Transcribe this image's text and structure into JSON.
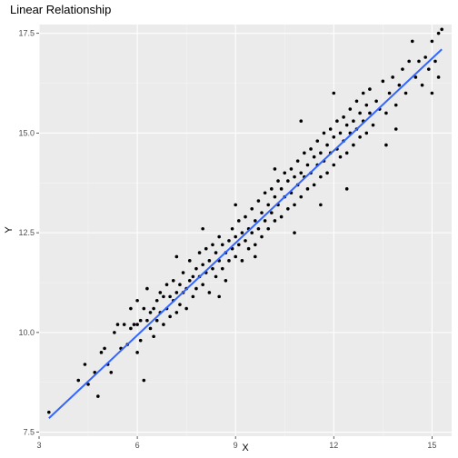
{
  "chart_data": {
    "type": "scatter",
    "title": "Linear Relationship",
    "xlabel": "X",
    "ylabel": "Y",
    "xlim": [
      3.0,
      15.6
    ],
    "ylim": [
      7.4,
      17.72
    ],
    "x_ticks": [
      3,
      6,
      9,
      12,
      15
    ],
    "x_tick_labels": [
      "3",
      "6",
      "9",
      "12",
      "15"
    ],
    "y_ticks": [
      7.5,
      10.0,
      12.5,
      15.0,
      17.5
    ],
    "y_tick_labels": [
      "7.5",
      "10.0",
      "12.5",
      "15.0",
      "17.5"
    ],
    "grid": true,
    "legend": "none",
    "panel_color": "#ebebeb",
    "point_color": "#000000",
    "fit_line": {
      "color": "#3366ff",
      "x": [
        3.3,
        15.3
      ],
      "y": [
        7.85,
        17.1
      ]
    },
    "points": [
      [
        3.3,
        8.0
      ],
      [
        4.2,
        8.8
      ],
      [
        4.4,
        9.2
      ],
      [
        4.5,
        8.7
      ],
      [
        4.7,
        9.0
      ],
      [
        4.8,
        8.4
      ],
      [
        4.9,
        9.5
      ],
      [
        5.0,
        9.6
      ],
      [
        5.1,
        9.2
      ],
      [
        5.2,
        9.0
      ],
      [
        5.3,
        10.0
      ],
      [
        5.4,
        10.2
      ],
      [
        5.5,
        9.6
      ],
      [
        5.6,
        10.2
      ],
      [
        5.7,
        9.7
      ],
      [
        5.8,
        10.1
      ],
      [
        5.8,
        10.6
      ],
      [
        5.9,
        10.2
      ],
      [
        6.0,
        9.5
      ],
      [
        6.0,
        10.8
      ],
      [
        6.1,
        10.3
      ],
      [
        6.1,
        9.8
      ],
      [
        6.2,
        8.8
      ],
      [
        6.2,
        10.6
      ],
      [
        6.3,
        10.3
      ],
      [
        6.3,
        11.1
      ],
      [
        6.4,
        10.1
      ],
      [
        6.4,
        10.5
      ],
      [
        6.5,
        9.9
      ],
      [
        6.5,
        10.6
      ],
      [
        6.6,
        10.8
      ],
      [
        6.6,
        10.3
      ],
      [
        6.7,
        10.5
      ],
      [
        6.7,
        11.0
      ],
      [
        6.8,
        10.2
      ],
      [
        6.8,
        10.9
      ],
      [
        6.9,
        10.6
      ],
      [
        6.9,
        11.2
      ],
      [
        7.0,
        10.4
      ],
      [
        7.0,
        10.9
      ],
      [
        7.1,
        10.8
      ],
      [
        7.1,
        11.3
      ],
      [
        7.2,
        10.5
      ],
      [
        7.2,
        11.0
      ],
      [
        7.3,
        11.2
      ],
      [
        7.3,
        10.7
      ],
      [
        7.4,
        11.0
      ],
      [
        7.4,
        11.5
      ],
      [
        7.5,
        11.1
      ],
      [
        7.5,
        10.6
      ],
      [
        7.6,
        11.3
      ],
      [
        7.6,
        11.8
      ],
      [
        7.7,
        10.9
      ],
      [
        7.7,
        11.4
      ],
      [
        7.8,
        11.6
      ],
      [
        7.8,
        11.1
      ],
      [
        7.9,
        11.4
      ],
      [
        7.9,
        12.0
      ],
      [
        8.0,
        11.2
      ],
      [
        8.0,
        11.7
      ],
      [
        8.1,
        11.5
      ],
      [
        8.1,
        12.1
      ],
      [
        8.2,
        11.0
      ],
      [
        8.2,
        11.8
      ],
      [
        8.3,
        11.6
      ],
      [
        8.3,
        12.2
      ],
      [
        8.4,
        11.4
      ],
      [
        8.4,
        12.0
      ],
      [
        8.5,
        11.8
      ],
      [
        8.5,
        12.4
      ],
      [
        8.6,
        11.6
      ],
      [
        8.6,
        12.2
      ],
      [
        8.7,
        12.0
      ],
      [
        8.7,
        11.3
      ],
      [
        8.8,
        12.3
      ],
      [
        8.8,
        11.8
      ],
      [
        8.9,
        12.1
      ],
      [
        8.9,
        12.6
      ],
      [
        9.0,
        11.9
      ],
      [
        9.0,
        12.4
      ],
      [
        9.1,
        12.2
      ],
      [
        9.1,
        12.8
      ],
      [
        9.2,
        11.8
      ],
      [
        9.2,
        12.5
      ],
      [
        9.3,
        12.3
      ],
      [
        9.3,
        12.9
      ],
      [
        9.4,
        12.1
      ],
      [
        9.4,
        12.6
      ],
      [
        9.5,
        12.5
      ],
      [
        9.5,
        13.1
      ],
      [
        9.6,
        12.2
      ],
      [
        9.6,
        12.8
      ],
      [
        9.7,
        12.6
      ],
      [
        9.7,
        13.3
      ],
      [
        9.8,
        12.4
      ],
      [
        9.8,
        13.0
      ],
      [
        9.9,
        12.8
      ],
      [
        9.9,
        13.5
      ],
      [
        10.0,
        12.6
      ],
      [
        10.0,
        13.2
      ],
      [
        10.1,
        13.0
      ],
      [
        10.1,
        13.6
      ],
      [
        10.2,
        12.8
      ],
      [
        10.2,
        13.4
      ],
      [
        10.3,
        13.2
      ],
      [
        10.3,
        13.8
      ],
      [
        10.4,
        12.9
      ],
      [
        10.4,
        13.6
      ],
      [
        10.5,
        13.4
      ],
      [
        10.5,
        14.0
      ],
      [
        10.6,
        13.1
      ],
      [
        10.6,
        13.8
      ],
      [
        10.7,
        13.5
      ],
      [
        10.7,
        14.1
      ],
      [
        10.8,
        13.2
      ],
      [
        10.8,
        13.9
      ],
      [
        10.9,
        13.7
      ],
      [
        10.9,
        14.3
      ],
      [
        11.0,
        13.4
      ],
      [
        11.0,
        14.0
      ],
      [
        11.1,
        13.9
      ],
      [
        11.1,
        14.5
      ],
      [
        11.2,
        13.6
      ],
      [
        11.2,
        14.2
      ],
      [
        11.3,
        14.0
      ],
      [
        11.3,
        14.6
      ],
      [
        11.4,
        13.7
      ],
      [
        11.4,
        14.4
      ],
      [
        11.5,
        14.2
      ],
      [
        11.5,
        14.8
      ],
      [
        11.6,
        13.9
      ],
      [
        11.6,
        14.5
      ],
      [
        11.7,
        14.3
      ],
      [
        11.7,
        15.0
      ],
      [
        11.8,
        14.0
      ],
      [
        11.8,
        14.7
      ],
      [
        11.9,
        14.5
      ],
      [
        11.9,
        15.1
      ],
      [
        12.0,
        14.2
      ],
      [
        12.0,
        14.9
      ],
      [
        12.1,
        14.6
      ],
      [
        12.1,
        15.3
      ],
      [
        12.2,
        14.4
      ],
      [
        12.2,
        15.0
      ],
      [
        12.3,
        14.8
      ],
      [
        12.3,
        15.4
      ],
      [
        12.4,
        14.5
      ],
      [
        12.4,
        15.2
      ],
      [
        12.5,
        15.0
      ],
      [
        12.5,
        15.6
      ],
      [
        12.6,
        14.7
      ],
      [
        12.6,
        15.3
      ],
      [
        12.7,
        15.1
      ],
      [
        12.7,
        15.8
      ],
      [
        12.8,
        14.9
      ],
      [
        12.8,
        15.5
      ],
      [
        12.9,
        15.3
      ],
      [
        12.9,
        16.0
      ],
      [
        13.0,
        15.0
      ],
      [
        13.0,
        15.7
      ],
      [
        13.1,
        15.5
      ],
      [
        13.1,
        16.1
      ],
      [
        13.2,
        15.2
      ],
      [
        13.3,
        15.8
      ],
      [
        13.4,
        15.6
      ],
      [
        13.5,
        16.3
      ],
      [
        13.6,
        15.5
      ],
      [
        13.7,
        16.0
      ],
      [
        13.8,
        16.4
      ],
      [
        13.9,
        15.7
      ],
      [
        14.0,
        16.2
      ],
      [
        14.1,
        16.6
      ],
      [
        14.2,
        16.0
      ],
      [
        14.3,
        16.8
      ],
      [
        14.4,
        17.3
      ],
      [
        14.5,
        16.4
      ],
      [
        14.6,
        16.8
      ],
      [
        14.7,
        16.2
      ],
      [
        14.8,
        16.9
      ],
      [
        14.9,
        16.6
      ],
      [
        15.0,
        17.3
      ],
      [
        15.0,
        16.0
      ],
      [
        15.1,
        16.8
      ],
      [
        15.2,
        17.5
      ],
      [
        15.3,
        17.6
      ],
      [
        15.2,
        16.4
      ],
      [
        12.4,
        13.6
      ],
      [
        10.2,
        14.1
      ],
      [
        9.0,
        13.2
      ],
      [
        11.6,
        13.2
      ],
      [
        8.5,
        10.9
      ],
      [
        7.2,
        11.9
      ],
      [
        6.0,
        10.2
      ],
      [
        13.6,
        14.7
      ],
      [
        13.9,
        15.1
      ],
      [
        12.0,
        16.0
      ],
      [
        11.0,
        15.3
      ],
      [
        9.6,
        11.9
      ],
      [
        8.0,
        12.6
      ],
      [
        10.8,
        12.5
      ]
    ]
  }
}
